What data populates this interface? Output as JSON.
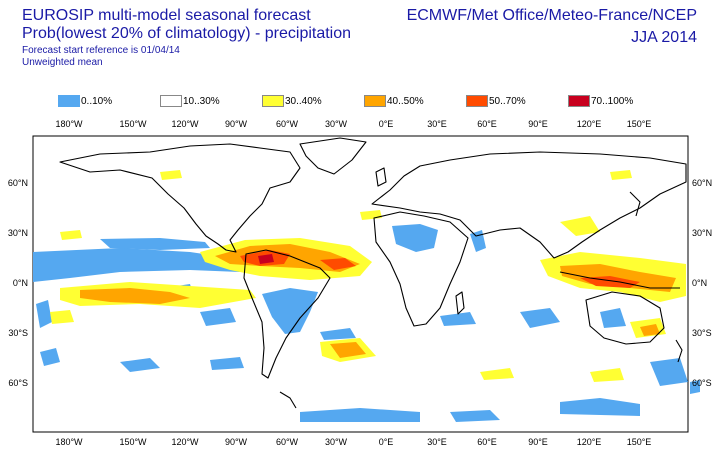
{
  "header": {
    "title": "EUROSIP multi-model seasonal forecast",
    "subtitle": "Prob(lowest 20% of climatology) - precipitation",
    "forecast_ref": "Forecast start reference is 01/04/14",
    "mean_type": "Unweighted mean",
    "centres": "ECMWF/Met Office/Meteo-France/NCEP",
    "season": "JJA 2014"
  },
  "legend": [
    {
      "label": "0..10%",
      "color": "#55a8f0"
    },
    {
      "label": "10..30%",
      "color": "#ffffff"
    },
    {
      "label": "30..40%",
      "color": "#ffff33"
    },
    {
      "label": "40..50%",
      "color": "#ffa500"
    },
    {
      "label": "50..70%",
      "color": "#ff4b00"
    },
    {
      "label": "70..100%",
      "color": "#c8001e"
    }
  ],
  "axes": {
    "lon_labels": [
      "180°W",
      "150°W",
      "120°W",
      "90°W",
      "60°W",
      "30°W",
      "0°E",
      "30°E",
      "60°E",
      "90°E",
      "120°E",
      "150°E"
    ],
    "lat_labels": [
      "60°N",
      "30°N",
      "0°N",
      "30°S",
      "60°S"
    ]
  }
}
